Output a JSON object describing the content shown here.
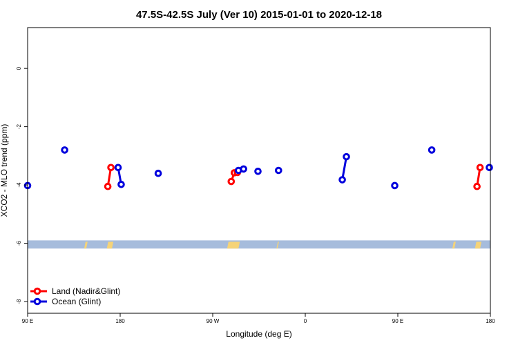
{
  "chart_data": {
    "type": "scatter",
    "title": "47.5S-42.5S July (Ver 10)   2015-01-01 to 2020-12-18",
    "xlabel": "Longitude (deg E)",
    "ylabel": "XCO2 - MLO trend (ppm)",
    "xlim": [
      90,
      450
    ],
    "ylim": [
      -8.4,
      1.4
    ],
    "x_ticks": [
      {
        "value": 90,
        "label": "90 E"
      },
      {
        "value": 180,
        "label": "180"
      },
      {
        "value": 270,
        "label": "90 W"
      },
      {
        "value": 360,
        "label": "0"
      },
      {
        "value": 450,
        "label": "90 E"
      },
      {
        "value": 540,
        "label": "180"
      }
    ],
    "y_ticks": [
      {
        "value": 0,
        "label": "0"
      },
      {
        "value": -2,
        "label": "-2"
      },
      {
        "value": -4,
        "label": "-4"
      },
      {
        "value": -6,
        "label": "-6"
      },
      {
        "value": -8,
        "label": "-8"
      }
    ],
    "x_axis_range_displayed": [
      90,
      540
    ],
    "grid": false,
    "legend_position": "bottom-left",
    "series": [
      {
        "name": "Land (Nadir&Glint)",
        "color": "#ff0000",
        "segments": [
          [
            {
              "x": 168,
              "y": -4.05
            },
            {
              "x": 171,
              "y": -3.4
            }
          ],
          [
            {
              "x": 288,
              "y": -3.88
            },
            {
              "x": 291,
              "y": -3.58
            }
          ],
          [
            {
              "x": 294,
              "y": -3.57
            }
          ],
          [
            {
              "x": 527,
              "y": -4.05
            },
            {
              "x": 530,
              "y": -3.4
            }
          ]
        ]
      },
      {
        "name": "Ocean (Glint)",
        "color": "#0000dd",
        "segments": [
          [
            {
              "x": 90,
              "y": -4.02
            }
          ],
          [
            {
              "x": 126,
              "y": -2.8
            }
          ],
          [
            {
              "x": 178,
              "y": -3.4
            },
            {
              "x": 181,
              "y": -3.98
            }
          ],
          [
            {
              "x": 217,
              "y": -3.6
            }
          ],
          [
            {
              "x": 295,
              "y": -3.5
            }
          ],
          [
            {
              "x": 300,
              "y": -3.45
            }
          ],
          [
            {
              "x": 314,
              "y": -3.53
            }
          ],
          [
            {
              "x": 334,
              "y": -3.5
            }
          ],
          [
            {
              "x": 396,
              "y": -3.82
            },
            {
              "x": 400,
              "y": -3.03
            }
          ],
          [
            {
              "x": 447,
              "y": -4.02
            }
          ],
          [
            {
              "x": 483,
              "y": -2.8
            }
          ],
          [
            {
              "x": 539,
              "y": -3.4
            }
          ]
        ]
      }
    ],
    "land_band": {
      "y_range": [
        -6.18,
        -5.9
      ],
      "band_color": "#a6bcdc",
      "land_color": "#f5d378",
      "land_segments": [
        {
          "x_from": 145,
          "x_to": 147
        },
        {
          "x_from": 167,
          "x_to": 172
        },
        {
          "x_from": 284,
          "x_to": 295
        },
        {
          "x_from": 332,
          "x_to": 333
        },
        {
          "x_from": 503,
          "x_to": 505
        },
        {
          "x_from": 525,
          "x_to": 530
        }
      ]
    }
  }
}
